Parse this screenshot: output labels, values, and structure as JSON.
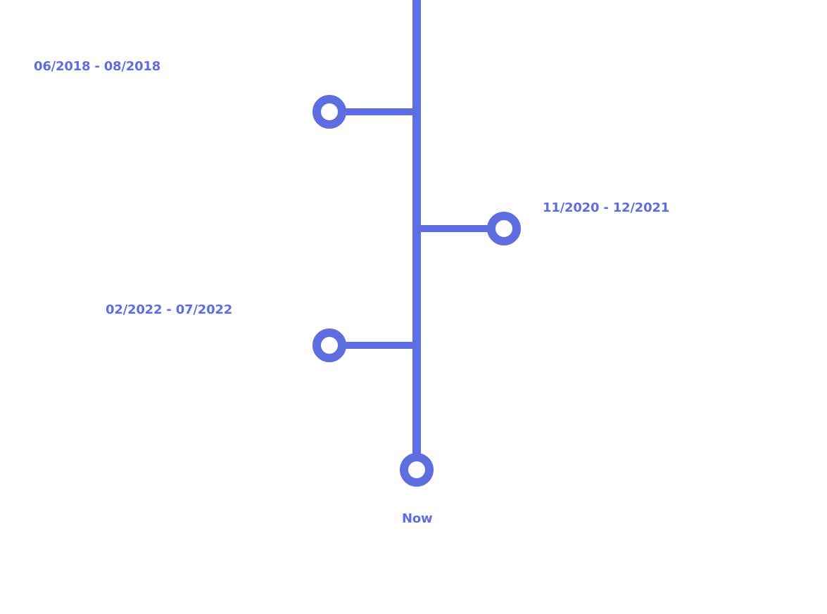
{
  "timeline": {
    "accent_color": "#5e6ddf",
    "entries": [
      {
        "label": "06/2018 - 08/2018",
        "side": "left"
      },
      {
        "label": "11/2020 - 12/2021",
        "side": "right"
      },
      {
        "label": "02/2022 - 07/2022",
        "side": "left"
      }
    ],
    "end_label": "Now"
  }
}
